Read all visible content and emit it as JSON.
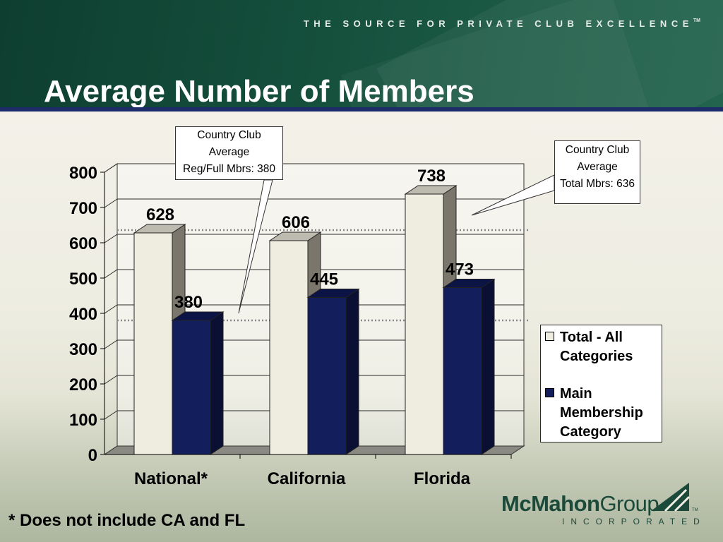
{
  "header": {
    "tagline": "THE SOURCE FOR PRIVATE CLUB EXCELLENCE",
    "tagline_tm": "TM",
    "title": "Average Number of Members"
  },
  "chart_data": {
    "type": "bar",
    "categories": [
      "National*",
      "California",
      "Florida"
    ],
    "series": [
      {
        "name": "Total - All Categories",
        "values": [
          628,
          606,
          738
        ],
        "color": "#efece0"
      },
      {
        "name": "Main Membership Category",
        "values": [
          380,
          445,
          473
        ],
        "color": "#131e5c"
      }
    ],
    "ylim": [
      0,
      800
    ],
    "yticks": [
      "0",
      "100",
      "200",
      "300",
      "400",
      "500",
      "600",
      "700",
      "800"
    ],
    "data_labels": [
      [
        "628",
        "606",
        "738"
      ],
      [
        "380",
        "445",
        "473"
      ]
    ],
    "reference_lines": [
      {
        "value": 636,
        "label": "Country Club Average Total Mbrs: 636"
      },
      {
        "value": 380,
        "label": "Country Club Average Reg/Full Mbrs: 380"
      }
    ],
    "grid": true,
    "legend": "right"
  },
  "legend": {
    "items": [
      {
        "label": "Total - All Categories",
        "color": "#efece0"
      },
      {
        "label": "Main Membership Category",
        "color": "#131e5c"
      }
    ]
  },
  "callouts": {
    "regular": {
      "line1": "Country Club",
      "line2": "Average",
      "line3": "Reg/Full Mbrs: 380"
    },
    "total": {
      "line1": "Country Club",
      "line2": "Average",
      "line3": "Total Mbrs: 636"
    }
  },
  "footnote": "* Does not include CA and FL",
  "logo": {
    "name_bold": "McMahon",
    "name_regular": "Group",
    "incorporated": "INCORPORATED",
    "tm": "TM"
  }
}
